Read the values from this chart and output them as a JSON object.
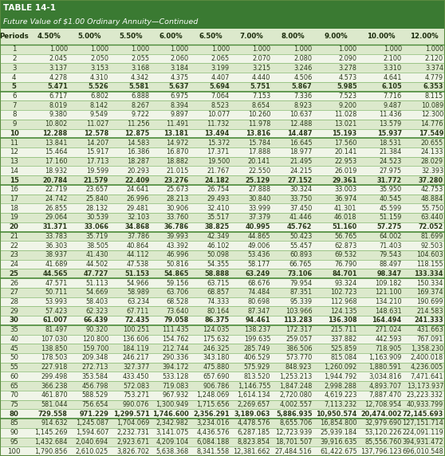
{
  "title1": "TABLE 14-1",
  "title2": "Future Value of $1.00 Ordinary Annuity—Continued",
  "col_headers": [
    "Periods",
    "4.50%",
    "5.00%",
    "5.50%",
    "6.00%",
    "6.50%",
    "7.00%",
    "8.00%",
    "9.00%",
    "10.00%",
    "12.00%"
  ],
  "rows": [
    [
      1,
      1.0,
      1.0,
      1.0,
      1.0,
      1.0,
      1.0,
      1.0,
      1.0,
      1.0,
      1.0
    ],
    [
      2,
      2.045,
      2.05,
      2.055,
      2.06,
      2.065,
      2.07,
      2.08,
      2.09,
      2.1,
      2.12
    ],
    [
      3,
      3.137,
      3.153,
      3.168,
      3.184,
      3.199,
      3.215,
      3.246,
      3.278,
      3.31,
      3.374
    ],
    [
      4,
      4.278,
      4.31,
      4.342,
      4.375,
      4.407,
      4.44,
      4.506,
      4.573,
      4.641,
      4.779
    ],
    [
      5,
      5.471,
      5.526,
      5.581,
      5.637,
      5.694,
      5.751,
      5.867,
      5.985,
      6.105,
      6.353
    ],
    [
      6,
      6.717,
      6.802,
      6.888,
      6.975,
      7.064,
      7.153,
      7.336,
      7.523,
      7.716,
      8.115
    ],
    [
      7,
      8.019,
      8.142,
      8.267,
      8.394,
      8.523,
      8.654,
      8.923,
      9.2,
      9.487,
      10.089
    ],
    [
      8,
      9.38,
      9.549,
      9.722,
      9.897,
      10.077,
      10.26,
      10.637,
      11.028,
      11.436,
      12.3
    ],
    [
      9,
      10.802,
      11.027,
      11.256,
      11.491,
      11.732,
      11.978,
      12.488,
      13.021,
      13.579,
      14.776
    ],
    [
      10,
      12.288,
      12.578,
      12.875,
      13.181,
      13.494,
      13.816,
      14.487,
      15.193,
      15.937,
      17.549
    ],
    [
      11,
      13.841,
      14.207,
      14.583,
      14.972,
      15.372,
      15.784,
      16.645,
      17.56,
      18.531,
      20.655
    ],
    [
      12,
      15.464,
      15.917,
      16.386,
      16.87,
      17.371,
      17.888,
      18.977,
      20.141,
      21.384,
      24.133
    ],
    [
      13,
      17.16,
      17.713,
      18.287,
      18.882,
      19.5,
      20.141,
      21.495,
      22.953,
      24.523,
      28.029
    ],
    [
      14,
      18.932,
      19.599,
      20.293,
      21.015,
      21.767,
      22.55,
      24.215,
      26.019,
      27.975,
      32.393
    ],
    [
      15,
      20.784,
      21.579,
      22.409,
      23.276,
      24.182,
      25.129,
      27.152,
      29.361,
      31.772,
      37.28
    ],
    [
      16,
      22.719,
      23.657,
      24.641,
      25.673,
      26.754,
      27.888,
      30.324,
      33.003,
      35.95,
      42.753
    ],
    [
      17,
      24.742,
      25.84,
      26.996,
      28.213,
      29.493,
      30.84,
      33.75,
      36.974,
      40.545,
      48.884
    ],
    [
      18,
      26.855,
      28.132,
      29.481,
      30.906,
      32.41,
      33.999,
      37.45,
      41.301,
      45.599,
      55.75
    ],
    [
      19,
      29.064,
      30.539,
      32.103,
      33.76,
      35.517,
      37.379,
      41.446,
      46.018,
      51.159,
      63.44
    ],
    [
      20,
      31.371,
      33.066,
      34.868,
      36.786,
      38.825,
      40.995,
      45.762,
      51.16,
      57.275,
      72.052
    ],
    [
      21,
      33.783,
      35.719,
      37.786,
      39.993,
      42.349,
      44.865,
      50.423,
      56.765,
      64.002,
      81.699
    ],
    [
      22,
      36.303,
      38.505,
      40.864,
      43.392,
      46.102,
      49.006,
      55.457,
      62.873,
      71.403,
      92.503
    ],
    [
      23,
      38.937,
      41.43,
      44.112,
      46.996,
      50.098,
      53.436,
      60.893,
      69.532,
      79.543,
      104.603
    ],
    [
      24,
      41.689,
      44.502,
      47.538,
      50.816,
      54.355,
      58.177,
      66.765,
      76.79,
      88.497,
      118.155
    ],
    [
      25,
      44.565,
      47.727,
      51.153,
      54.865,
      58.888,
      63.249,
      73.106,
      84.701,
      98.347,
      133.334
    ],
    [
      26,
      47.571,
      51.113,
      54.966,
      59.156,
      63.715,
      68.676,
      79.954,
      93.324,
      109.182,
      150.334
    ],
    [
      27,
      50.711,
      54.669,
      58.989,
      63.706,
      68.857,
      74.484,
      87.351,
      102.723,
      121.1,
      169.374
    ],
    [
      28,
      53.993,
      58.403,
      63.234,
      68.528,
      74.333,
      80.698,
      95.339,
      112.968,
      134.21,
      190.699
    ],
    [
      29,
      57.423,
      62.323,
      67.711,
      73.64,
      80.164,
      87.347,
      103.966,
      124.135,
      148.631,
      214.583
    ],
    [
      30,
      61.007,
      66.439,
      72.435,
      79.058,
      86.375,
      94.461,
      113.283,
      136.308,
      164.494,
      241.333
    ],
    [
      35,
      81.497,
      90.32,
      100.251,
      111.435,
      124.035,
      138.237,
      172.317,
      215.711,
      271.024,
      431.663
    ],
    [
      40,
      107.03,
      120.8,
      136.606,
      154.762,
      175.632,
      199.635,
      259.057,
      337.882,
      442.593,
      767.091
    ],
    [
      45,
      138.85,
      159.7,
      184.119,
      212.744,
      246.325,
      285.749,
      386.506,
      525.859,
      718.905,
      1358.23
    ],
    [
      50,
      178.503,
      209.348,
      246.217,
      290.336,
      343.18,
      406.529,
      573.77,
      815.084,
      1163.909,
      2400.018
    ],
    [
      55,
      227.918,
      272.713,
      327.377,
      394.172,
      475.88,
      575.929,
      848.923,
      1260.092,
      1880.591,
      4236.005
    ],
    [
      60,
      299.498,
      353.584,
      433.45,
      533.128,
      657.69,
      813.52,
      1253.213,
      1944.792,
      3034.816,
      7471.641
    ],
    [
      65,
      366.238,
      456.798,
      572.083,
      719.083,
      906.786,
      1146.755,
      1847.248,
      2998.288,
      4893.707,
      13173.937
    ],
    [
      70,
      461.87,
      588.529,
      753.271,
      967.932,
      1248.069,
      1614.134,
      2720.08,
      4619.223,
      7887.47,
      23223.332
    ],
    [
      75,
      581.044,
      756.654,
      990.076,
      1300.949,
      1715.656,
      2269.657,
      4002.557,
      7113.232,
      12708.954,
      40933.799
    ],
    [
      80,
      729.558,
      971.229,
      1299.571,
      1746.6,
      2356.291,
      3189.063,
      5886.935,
      10950.574,
      20474.002,
      72145.693
    ],
    [
      85,
      914.632,
      1245.087,
      1704.069,
      2342.982,
      3234.016,
      4478.576,
      8655.706,
      16854.8,
      32979.69,
      127151.714
    ],
    [
      90,
      1145.269,
      1594.607,
      2232.731,
      3141.075,
      4436.576,
      6287.185,
      12723.939,
      25939.184,
      53120.226,
      224091.119
    ],
    [
      95,
      1432.684,
      2040.694,
      2923.671,
      4209.104,
      6084.188,
      8823.854,
      18701.507,
      39916.635,
      85556.76,
      394931.472
    ],
    [
      100,
      1790.856,
      2610.025,
      3826.702,
      5638.368,
      8341.558,
      12381.662,
      27484.516,
      61422.675,
      137796.123,
      696010.548
    ]
  ],
  "bold_rows": [
    5,
    10,
    15,
    20,
    25,
    30,
    80
  ],
  "title_bg": "#3a7a32",
  "row_light": "#dce9cc",
  "row_white": "#f0f5e8",
  "row_bold_sep": "#6a9a50",
  "text_color": "#2a3a1a",
  "header_text": "#1a2a0a",
  "border_color": "#5a8a40",
  "sep_line_color": "#6aaa50",
  "thick_line_color": "#4a8a38"
}
